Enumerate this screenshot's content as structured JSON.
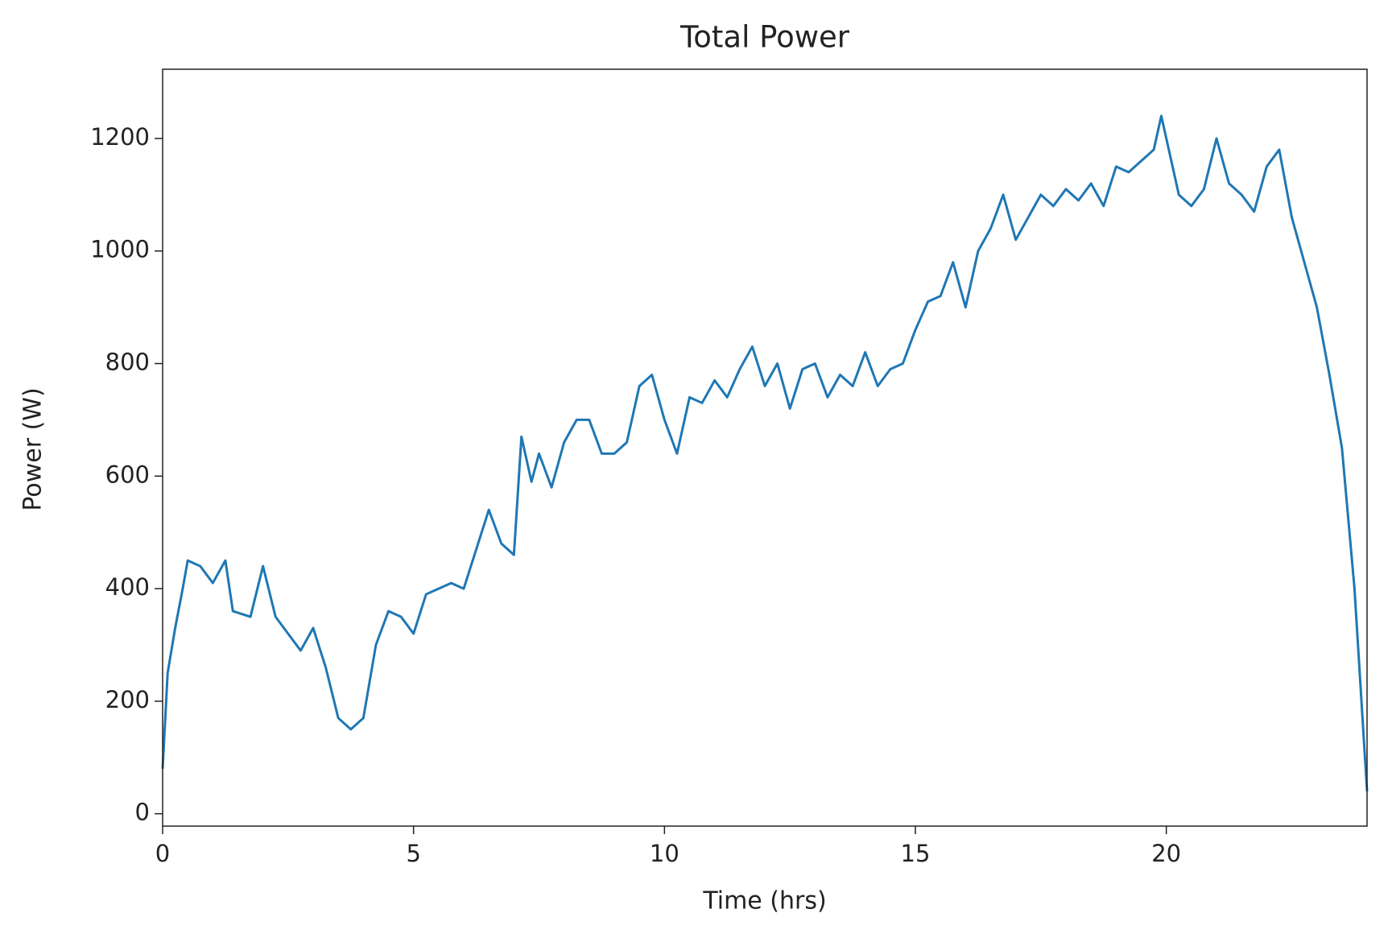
{
  "chart_data": {
    "type": "line",
    "title": "Total Power",
    "x_label": "Time (hrs)",
    "y_label": "Power (W)",
    "color": "#1f77b4",
    "x": [
      0,
      0.1,
      0.25,
      0.4,
      0.5,
      0.75,
      1.0,
      1.25,
      1.4,
      1.75,
      2.0,
      2.25,
      2.5,
      2.75,
      3.0,
      3.25,
      3.5,
      3.75,
      4.0,
      4.25,
      4.5,
      4.75,
      5.0,
      5.25,
      5.5,
      5.75,
      6.0,
      6.25,
      6.5,
      6.75,
      7.0,
      7.15,
      7.35,
      7.5,
      7.75,
      8.0,
      8.25,
      8.5,
      8.75,
      9.0,
      9.25,
      9.5,
      9.75,
      10.0,
      10.25,
      10.5,
      10.75,
      11.0,
      11.25,
      11.5,
      11.75,
      12.0,
      12.25,
      12.5,
      12.75,
      13.0,
      13.25,
      13.5,
      13.75,
      14.0,
      14.25,
      14.5,
      14.75,
      15.0,
      15.25,
      15.5,
      15.75,
      16.0,
      16.25,
      16.5,
      16.75,
      17.0,
      17.25,
      17.5,
      17.75,
      18.0,
      18.25,
      18.5,
      18.75,
      19.0,
      19.25,
      19.5,
      19.75,
      19.9,
      20.0,
      20.25,
      20.5,
      20.75,
      21.0,
      21.25,
      21.5,
      21.75,
      22.0,
      22.25,
      22.5,
      22.75,
      23.0,
      23.25,
      23.5,
      23.75,
      24.0
    ],
    "values": [
      80,
      250,
      330,
      400,
      450,
      440,
      410,
      450,
      360,
      350,
      440,
      350,
      320,
      290,
      330,
      260,
      170,
      150,
      170,
      300,
      360,
      350,
      320,
      390,
      400,
      410,
      400,
      470,
      540,
      480,
      460,
      670,
      590,
      640,
      580,
      660,
      700,
      700,
      640,
      640,
      660,
      760,
      780,
      700,
      640,
      740,
      730,
      770,
      740,
      790,
      830,
      760,
      800,
      720,
      790,
      800,
      740,
      780,
      760,
      820,
      760,
      790,
      800,
      860,
      910,
      920,
      980,
      900,
      1000,
      1040,
      1100,
      1020,
      1060,
      1100,
      1080,
      1110,
      1090,
      1120,
      1080,
      1150,
      1140,
      1160,
      1180,
      1240,
      1200,
      1100,
      1080,
      1110,
      1200,
      1120,
      1100,
      1070,
      1150,
      1180,
      1060,
      980,
      900,
      780,
      650,
      400,
      40
    ],
    "xlim": [
      0,
      24
    ],
    "xticks": [
      0,
      5,
      10,
      15,
      20
    ],
    "ylim": [
      -22,
      1323
    ],
    "yticks": [
      0,
      200,
      400,
      600,
      800,
      1000,
      1200
    ]
  }
}
